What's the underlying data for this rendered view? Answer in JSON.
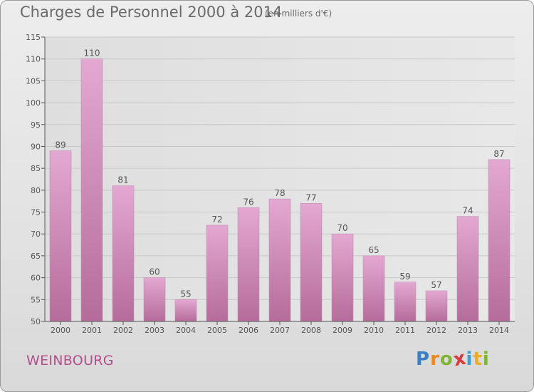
{
  "header": {
    "title": "Charges de Personnel 2000 à 2014",
    "subtitle": "(en milliers d'€)"
  },
  "footer": {
    "commune": "WEINBOURG",
    "logo_letters": [
      "P",
      "r",
      "o",
      "x",
      "i",
      "t",
      "i"
    ],
    "logo_colors": [
      "#3a7fc4",
      "#e8891f",
      "#7fb534",
      "#d63a3a",
      "#3a9fd6",
      "#e8b01f",
      "#7fb534"
    ]
  },
  "colors": {
    "bar_top": "#e3a8d2",
    "bar_bottom": "#b56c9b",
    "grid": "#c8c8c8",
    "axis": "#555555",
    "text": "#555555"
  },
  "chart_data": {
    "type": "bar",
    "categories": [
      "2000",
      "2001",
      "2002",
      "2003",
      "2004",
      "2005",
      "2006",
      "2007",
      "2008",
      "2009",
      "2010",
      "2011",
      "2012",
      "2013",
      "2014"
    ],
    "values": [
      89,
      110,
      81,
      60,
      55,
      72,
      76,
      78,
      77,
      70,
      65,
      59,
      57,
      74,
      87
    ],
    "ylim": [
      50,
      115
    ],
    "yticks": [
      50,
      55,
      60,
      65,
      70,
      75,
      80,
      85,
      90,
      95,
      100,
      105,
      110,
      115
    ],
    "grid": true,
    "data_labels": true
  }
}
